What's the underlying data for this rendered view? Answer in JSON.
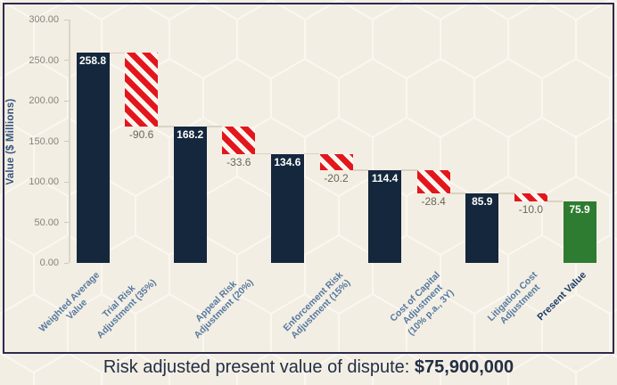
{
  "chart_data": {
    "type": "bar",
    "subtype": "waterfall",
    "ylabel": "Value ($ Millions)",
    "ylim": [
      0,
      300
    ],
    "yticks": [
      "300.00",
      "250.00",
      "200.00",
      "150.00",
      "100.00",
      "50.00",
      "0.00"
    ],
    "grid": false,
    "legend": "none",
    "bars": [
      {
        "name": "weighted-average-value",
        "label": "Weighted Average\nValue",
        "start": 0,
        "end": 258.8,
        "display": "258.8",
        "kind": "total"
      },
      {
        "name": "trial-risk-adjustment",
        "label": "Trial Risk\nAdjustment (35%)",
        "start": 168.2,
        "end": 258.8,
        "display": "-90.6",
        "kind": "decrease"
      },
      {
        "name": "subtotal-after-trial",
        "label": "",
        "start": 0,
        "end": 168.2,
        "display": "168.2",
        "kind": "total"
      },
      {
        "name": "appeal-risk-adjustment",
        "label": "Appeal Risk\nAdjustment (20%)",
        "start": 134.6,
        "end": 168.2,
        "display": "-33.6",
        "kind": "decrease"
      },
      {
        "name": "subtotal-after-appeal",
        "label": "",
        "start": 0,
        "end": 134.6,
        "display": "134.6",
        "kind": "total"
      },
      {
        "name": "enforcement-risk-adjustment",
        "label": "Enforcement Risk\nAdjustment (15%)",
        "start": 114.4,
        "end": 134.6,
        "display": "-20.2",
        "kind": "decrease"
      },
      {
        "name": "subtotal-after-enforcement",
        "label": "",
        "start": 0,
        "end": 114.4,
        "display": "114.4",
        "kind": "total"
      },
      {
        "name": "cost-of-capital-adjustment",
        "label": "Cost of Capital\nAdjustment\n(10% p.a., 3Y)",
        "start": 85.9,
        "end": 114.4,
        "display": "-28.4",
        "kind": "decrease"
      },
      {
        "name": "subtotal-after-cost-of-capital",
        "label": "",
        "start": 0,
        "end": 85.9,
        "display": "85.9",
        "kind": "total"
      },
      {
        "name": "litigation-cost-adjustment",
        "label": "Litigation Cost\nAdjustment",
        "start": 75.9,
        "end": 85.9,
        "display": "-10.0",
        "kind": "decrease"
      },
      {
        "name": "present-value",
        "label": "Present Value",
        "start": 0,
        "end": 75.9,
        "display": "75.9",
        "kind": "final"
      }
    ],
    "colors": {
      "total_bar": "#14273c",
      "decrease_stripe": "#e3151d",
      "decrease_background": "#fbf7ef",
      "final_bar": "#2e7c31",
      "panel_border": "#2d2a4e",
      "connector": "#d9d3c5"
    }
  },
  "caption": {
    "text": "Risk adjusted present value of dispute: ",
    "value": "$75,900,000"
  }
}
